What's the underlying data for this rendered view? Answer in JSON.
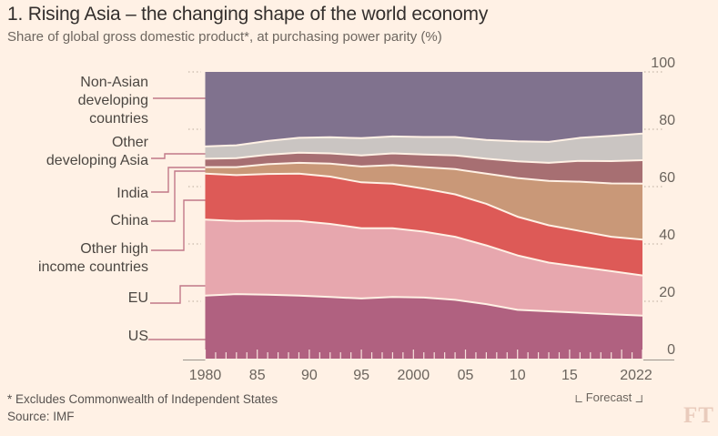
{
  "header": {
    "title": "1. Rising Asia – the changing shape of the world economy",
    "subtitle": "Share of global gross domestic product*, at purchasing power parity (%)"
  },
  "legend": {
    "items": [
      {
        "id": "non_asian",
        "lines": [
          "Non-Asian",
          "developing",
          "countries"
        ]
      },
      {
        "id": "other_dev_asia",
        "lines": [
          "Other",
          "developing Asia"
        ]
      },
      {
        "id": "india",
        "lines": [
          "India"
        ]
      },
      {
        "id": "china",
        "lines": [
          "China"
        ]
      },
      {
        "id": "other_high",
        "lines": [
          "Other high",
          "income countries"
        ]
      },
      {
        "id": "eu",
        "lines": [
          "EU"
        ]
      },
      {
        "id": "us",
        "lines": [
          "US"
        ]
      }
    ]
  },
  "axes": {
    "y_ticks": [
      0,
      20,
      40,
      60,
      80,
      100
    ],
    "x_ticks": [
      {
        "year": 1980,
        "label": "1980"
      },
      {
        "year": 1985,
        "label": "85"
      },
      {
        "year": 1990,
        "label": "90"
      },
      {
        "year": 1995,
        "label": "95"
      },
      {
        "year": 2000,
        "label": "2000"
      },
      {
        "year": 2005,
        "label": "05"
      },
      {
        "year": 2010,
        "label": "10"
      },
      {
        "year": 2015,
        "label": "15"
      },
      {
        "year": 2022,
        "label": "2022"
      }
    ],
    "forecast_label": "Forecast"
  },
  "footer": {
    "footnote": "* Excludes Commonwealth of Independent States",
    "source": "Source: IMF",
    "logo": "FT"
  },
  "colors": {
    "background": "#fff1e5",
    "separator": "#fff1e5",
    "leader_line": "#c17888",
    "grid_dot": "#c8b9ab",
    "axis_line": "#9b948c",
    "plot_tick": "rgba(255,241,229,0.9)"
  },
  "chart_data": {
    "type": "area",
    "stacked": true,
    "title": "1. Rising Asia – the changing shape of the world economy",
    "ylabel": "Share of global GDP at PPP (%)",
    "ylim": [
      0,
      100
    ],
    "grid": "tick-stubs-only",
    "legend_position": "left",
    "forecast_from": 2016,
    "x": [
      1980,
      1983,
      1986,
      1989,
      1992,
      1995,
      1998,
      2001,
      2004,
      2007,
      2010,
      2013,
      2016,
      2019,
      2022
    ],
    "series": [
      {
        "id": "us",
        "name": "US",
        "color": "#b06180",
        "values": [
          22.0,
          22.5,
          22.3,
          22.0,
          21.5,
          21.0,
          21.5,
          21.3,
          20.5,
          19.0,
          17.0,
          16.5,
          16.0,
          15.5,
          15.0
        ]
      },
      {
        "id": "eu",
        "name": "EU",
        "color": "#e7a7ae",
        "values": [
          26.5,
          25.5,
          25.8,
          26.0,
          25.5,
          24.5,
          24.0,
          23.0,
          22.0,
          20.5,
          19.0,
          17.0,
          16.0,
          15.0,
          14.0
        ]
      },
      {
        "id": "other_high",
        "name": "Other high income countries",
        "color": "#dd5a57",
        "values": [
          16.0,
          16.0,
          16.3,
          16.5,
          16.5,
          16.0,
          15.5,
          15.0,
          14.8,
          14.5,
          13.5,
          13.0,
          12.5,
          12.0,
          12.5
        ]
      },
      {
        "id": "china",
        "name": "China",
        "color": "#c99878",
        "values": [
          2.3,
          2.8,
          3.4,
          3.8,
          4.5,
          5.5,
          6.5,
          7.5,
          8.8,
          10.5,
          13.5,
          15.5,
          17.2,
          18.6,
          19.5
        ]
      },
      {
        "id": "india",
        "name": "India",
        "color": "#a76f72",
        "values": [
          2.9,
          3.1,
          3.3,
          3.5,
          3.6,
          3.9,
          4.1,
          4.4,
          4.8,
          5.2,
          5.8,
          6.3,
          7.3,
          7.8,
          8.2
        ]
      },
      {
        "id": "other_dev_asia",
        "name": "Other developing Asia",
        "color": "#cac5c2",
        "values": [
          4.3,
          4.5,
          4.8,
          5.2,
          5.6,
          6.0,
          5.9,
          6.1,
          6.4,
          6.6,
          7.0,
          7.3,
          8.0,
          8.8,
          9.3
        ]
      },
      {
        "id": "non_asian",
        "name": "Non-Asian developing countries",
        "color": "#80728e",
        "values": [
          26.0,
          25.6,
          24.1,
          23.0,
          22.8,
          23.1,
          22.5,
          22.7,
          22.7,
          23.7,
          24.2,
          24.4,
          23.0,
          22.3,
          21.5
        ]
      }
    ]
  }
}
